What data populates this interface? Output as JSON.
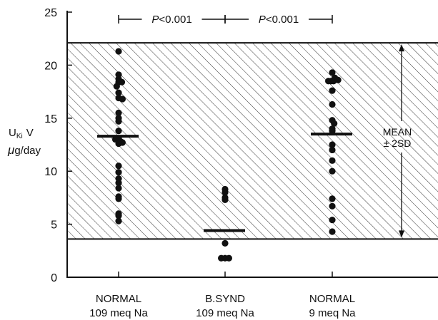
{
  "chart_data": {
    "type": "scatter",
    "ylabel_line1": "U",
    "ylabel_sub": "Ki",
    "ylabel_line1_suffix": "V",
    "ylabel_line2_mu": "μ",
    "ylabel_line2": "g/day",
    "ylim": [
      0,
      25
    ],
    "yticks": [
      "0",
      "5",
      "10",
      "15",
      "20",
      "25"
    ],
    "yticks_values": [
      0,
      5,
      10,
      15,
      20,
      25
    ],
    "grid": false,
    "categories": [
      {
        "line1": "NORMAL",
        "line2": "109 meq Na"
      },
      {
        "line1": "B.SYND",
        "line2": "109 meq Na"
      },
      {
        "line1": "NORMAL",
        "line2": "9 meq Na"
      }
    ],
    "reference_band": {
      "low": 3.6,
      "high": 22.1,
      "label_line1": "MEAN",
      "label_line2": "± 2SD"
    },
    "comparisons": [
      {
        "from": 0,
        "to": 1,
        "italic": "P",
        "label": "<0.001"
      },
      {
        "from": 1,
        "to": 2,
        "italic": "P",
        "label": "<0.001"
      }
    ],
    "means": [
      13.3,
      4.4,
      13.5
    ],
    "groups": [
      {
        "points": [
          {
            "x": 0,
            "y": 21.3
          },
          {
            "x": 0,
            "y": 19.1
          },
          {
            "x": 0,
            "y": 18.7
          },
          {
            "x": 0,
            "y": 18.4
          },
          {
            "x": 0.5,
            "y": 18.4
          },
          {
            "x": -0.3,
            "y": 18.0
          },
          {
            "x": 0,
            "y": 17.4
          },
          {
            "x": 0,
            "y": 16.9
          },
          {
            "x": 0.6,
            "y": 16.8
          },
          {
            "x": 0,
            "y": 15.5
          },
          {
            "x": 0,
            "y": 15.0
          },
          {
            "x": 0,
            "y": 14.7
          },
          {
            "x": 0,
            "y": 13.8
          },
          {
            "x": -0.5,
            "y": 13.0
          },
          {
            "x": 0,
            "y": 13.1
          },
          {
            "x": 0.3,
            "y": 12.8
          },
          {
            "x": 0.6,
            "y": 12.7
          },
          {
            "x": 0,
            "y": 12.6
          },
          {
            "x": 0,
            "y": 10.5
          },
          {
            "x": 0,
            "y": 9.9
          },
          {
            "x": 0,
            "y": 9.3
          },
          {
            "x": 0,
            "y": 8.9
          },
          {
            "x": 0,
            "y": 8.4
          },
          {
            "x": 0,
            "y": 7.6
          },
          {
            "x": 0,
            "y": 7.4
          },
          {
            "x": 0,
            "y": 6.0
          },
          {
            "x": 0,
            "y": 5.8
          },
          {
            "x": 0,
            "y": 5.3
          }
        ]
      },
      {
        "points": [
          {
            "x": 0,
            "y": 8.3
          },
          {
            "x": 0,
            "y": 8.0
          },
          {
            "x": 0,
            "y": 7.5
          },
          {
            "x": 0,
            "y": 7.3
          },
          {
            "x": 0,
            "y": 3.2
          },
          {
            "x": -0.6,
            "y": 1.8
          },
          {
            "x": 0,
            "y": 1.8
          },
          {
            "x": 0.6,
            "y": 1.8
          }
        ]
      },
      {
        "points": [
          {
            "x": 0,
            "y": 19.3
          },
          {
            "x": 0.4,
            "y": 18.8
          },
          {
            "x": -0.6,
            "y": 18.5
          },
          {
            "x": -0.2,
            "y": 18.5
          },
          {
            "x": 0.2,
            "y": 18.5
          },
          {
            "x": 0.9,
            "y": 18.6
          },
          {
            "x": 0,
            "y": 17.6
          },
          {
            "x": 0,
            "y": 16.3
          },
          {
            "x": 0,
            "y": 14.8
          },
          {
            "x": 0.3,
            "y": 14.5
          },
          {
            "x": 0,
            "y": 14.0
          },
          {
            "x": 0,
            "y": 13.8
          },
          {
            "x": 0,
            "y": 12.5
          },
          {
            "x": 0,
            "y": 12.0
          },
          {
            "x": 0,
            "y": 11.0
          },
          {
            "x": 0,
            "y": 10.0
          },
          {
            "x": 0,
            "y": 7.4
          },
          {
            "x": 0,
            "y": 6.7
          },
          {
            "x": 0,
            "y": 5.4
          },
          {
            "x": 0,
            "y": 4.3
          }
        ]
      }
    ]
  }
}
